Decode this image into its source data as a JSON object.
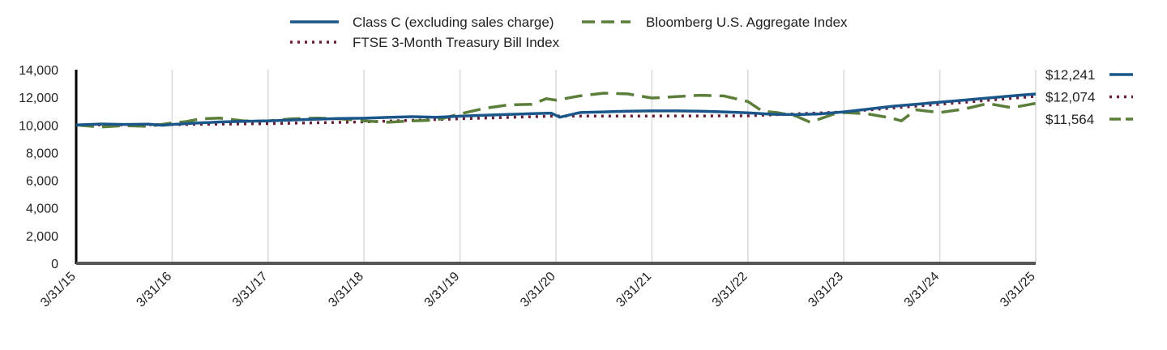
{
  "chart_data": {
    "type": "line",
    "title": "",
    "xlabel": "",
    "ylabel": "",
    "ylim": [
      0,
      14000
    ],
    "yticks": [
      "0",
      "2,000",
      "4,000",
      "6,000",
      "8,000",
      "10,000",
      "12,000",
      "14,000"
    ],
    "x_categories": [
      "3/31/15",
      "3/31/16",
      "3/31/17",
      "3/31/18",
      "3/31/19",
      "3/31/20",
      "3/31/21",
      "3/31/22",
      "3/31/23",
      "3/31/24",
      "3/31/25"
    ],
    "grid": "vertical",
    "legend_position": "top",
    "series": [
      {
        "name": "Class C (excluding sales charge)",
        "color": "#1a5689",
        "style": "solid",
        "end_label": "$12,241",
        "points": [
          [
            0,
            10000
          ],
          [
            0.25,
            10070
          ],
          [
            0.5,
            10040
          ],
          [
            0.75,
            10060
          ],
          [
            0.9,
            9980
          ],
          [
            1,
            10040
          ],
          [
            1.25,
            10140
          ],
          [
            1.5,
            10220
          ],
          [
            1.75,
            10260
          ],
          [
            2,
            10300
          ],
          [
            2.25,
            10360
          ],
          [
            2.5,
            10420
          ],
          [
            2.75,
            10470
          ],
          [
            3,
            10490
          ],
          [
            3.25,
            10550
          ],
          [
            3.5,
            10600
          ],
          [
            3.75,
            10560
          ],
          [
            4,
            10640
          ],
          [
            4.25,
            10700
          ],
          [
            4.5,
            10760
          ],
          [
            4.75,
            10820
          ],
          [
            4.95,
            10860
          ],
          [
            5.04,
            10560
          ],
          [
            5.25,
            10900
          ],
          [
            5.5,
            10950
          ],
          [
            5.75,
            11000
          ],
          [
            6,
            11020
          ],
          [
            6.25,
            11020
          ],
          [
            6.5,
            11000
          ],
          [
            6.75,
            10950
          ],
          [
            7,
            10880
          ],
          [
            7.25,
            10780
          ],
          [
            7.5,
            10750
          ],
          [
            7.75,
            10800
          ],
          [
            8,
            10950
          ],
          [
            8.25,
            11150
          ],
          [
            8.5,
            11350
          ],
          [
            8.75,
            11500
          ],
          [
            9,
            11650
          ],
          [
            9.25,
            11800
          ],
          [
            9.5,
            11950
          ],
          [
            9.75,
            12100
          ],
          [
            10,
            12241
          ]
        ]
      },
      {
        "name": "Bloomberg U.S. Aggregate Index",
        "color": "#5b7f3a",
        "style": "dashed",
        "end_label": "$11,564",
        "points": [
          [
            0,
            10000
          ],
          [
            0.25,
            9850
          ],
          [
            0.5,
            9950
          ],
          [
            0.75,
            9900
          ],
          [
            1,
            10150
          ],
          [
            1.15,
            10250
          ],
          [
            1.3,
            10450
          ],
          [
            1.5,
            10500
          ],
          [
            1.75,
            10300
          ],
          [
            2,
            10300
          ],
          [
            2.25,
            10450
          ],
          [
            2.5,
            10500
          ],
          [
            2.75,
            10450
          ],
          [
            3,
            10300
          ],
          [
            3.25,
            10200
          ],
          [
            3.5,
            10300
          ],
          [
            3.75,
            10350
          ],
          [
            4,
            10800
          ],
          [
            4.25,
            11200
          ],
          [
            4.5,
            11450
          ],
          [
            4.75,
            11500
          ],
          [
            4.9,
            11900
          ],
          [
            5,
            11800
          ],
          [
            5.25,
            12100
          ],
          [
            5.5,
            12300
          ],
          [
            5.75,
            12250
          ],
          [
            6,
            11950
          ],
          [
            6.25,
            12050
          ],
          [
            6.5,
            12150
          ],
          [
            6.75,
            12100
          ],
          [
            7,
            11700
          ],
          [
            7.15,
            11000
          ],
          [
            7.3,
            10900
          ],
          [
            7.5,
            10650
          ],
          [
            7.65,
            10200
          ],
          [
            7.9,
            10800
          ],
          [
            8,
            10900
          ],
          [
            8.25,
            10800
          ],
          [
            8.5,
            10500
          ],
          [
            8.6,
            10300
          ],
          [
            8.75,
            11100
          ],
          [
            9,
            10900
          ],
          [
            9.25,
            11150
          ],
          [
            9.5,
            11550
          ],
          [
            9.75,
            11250
          ],
          [
            10,
            11564
          ]
        ]
      },
      {
        "name": "FTSE 3-Month Treasury Bill Index",
        "color": "#6a1b3a",
        "style": "dotted",
        "end_label": "$12,074",
        "points": [
          [
            0,
            10000
          ],
          [
            1,
            10030
          ],
          [
            2,
            10100
          ],
          [
            3,
            10230
          ],
          [
            4,
            10450
          ],
          [
            5,
            10650
          ],
          [
            6,
            10650
          ],
          [
            7,
            10660
          ],
          [
            8,
            10950
          ],
          [
            9,
            11500
          ],
          [
            10,
            12074
          ]
        ]
      }
    ]
  }
}
